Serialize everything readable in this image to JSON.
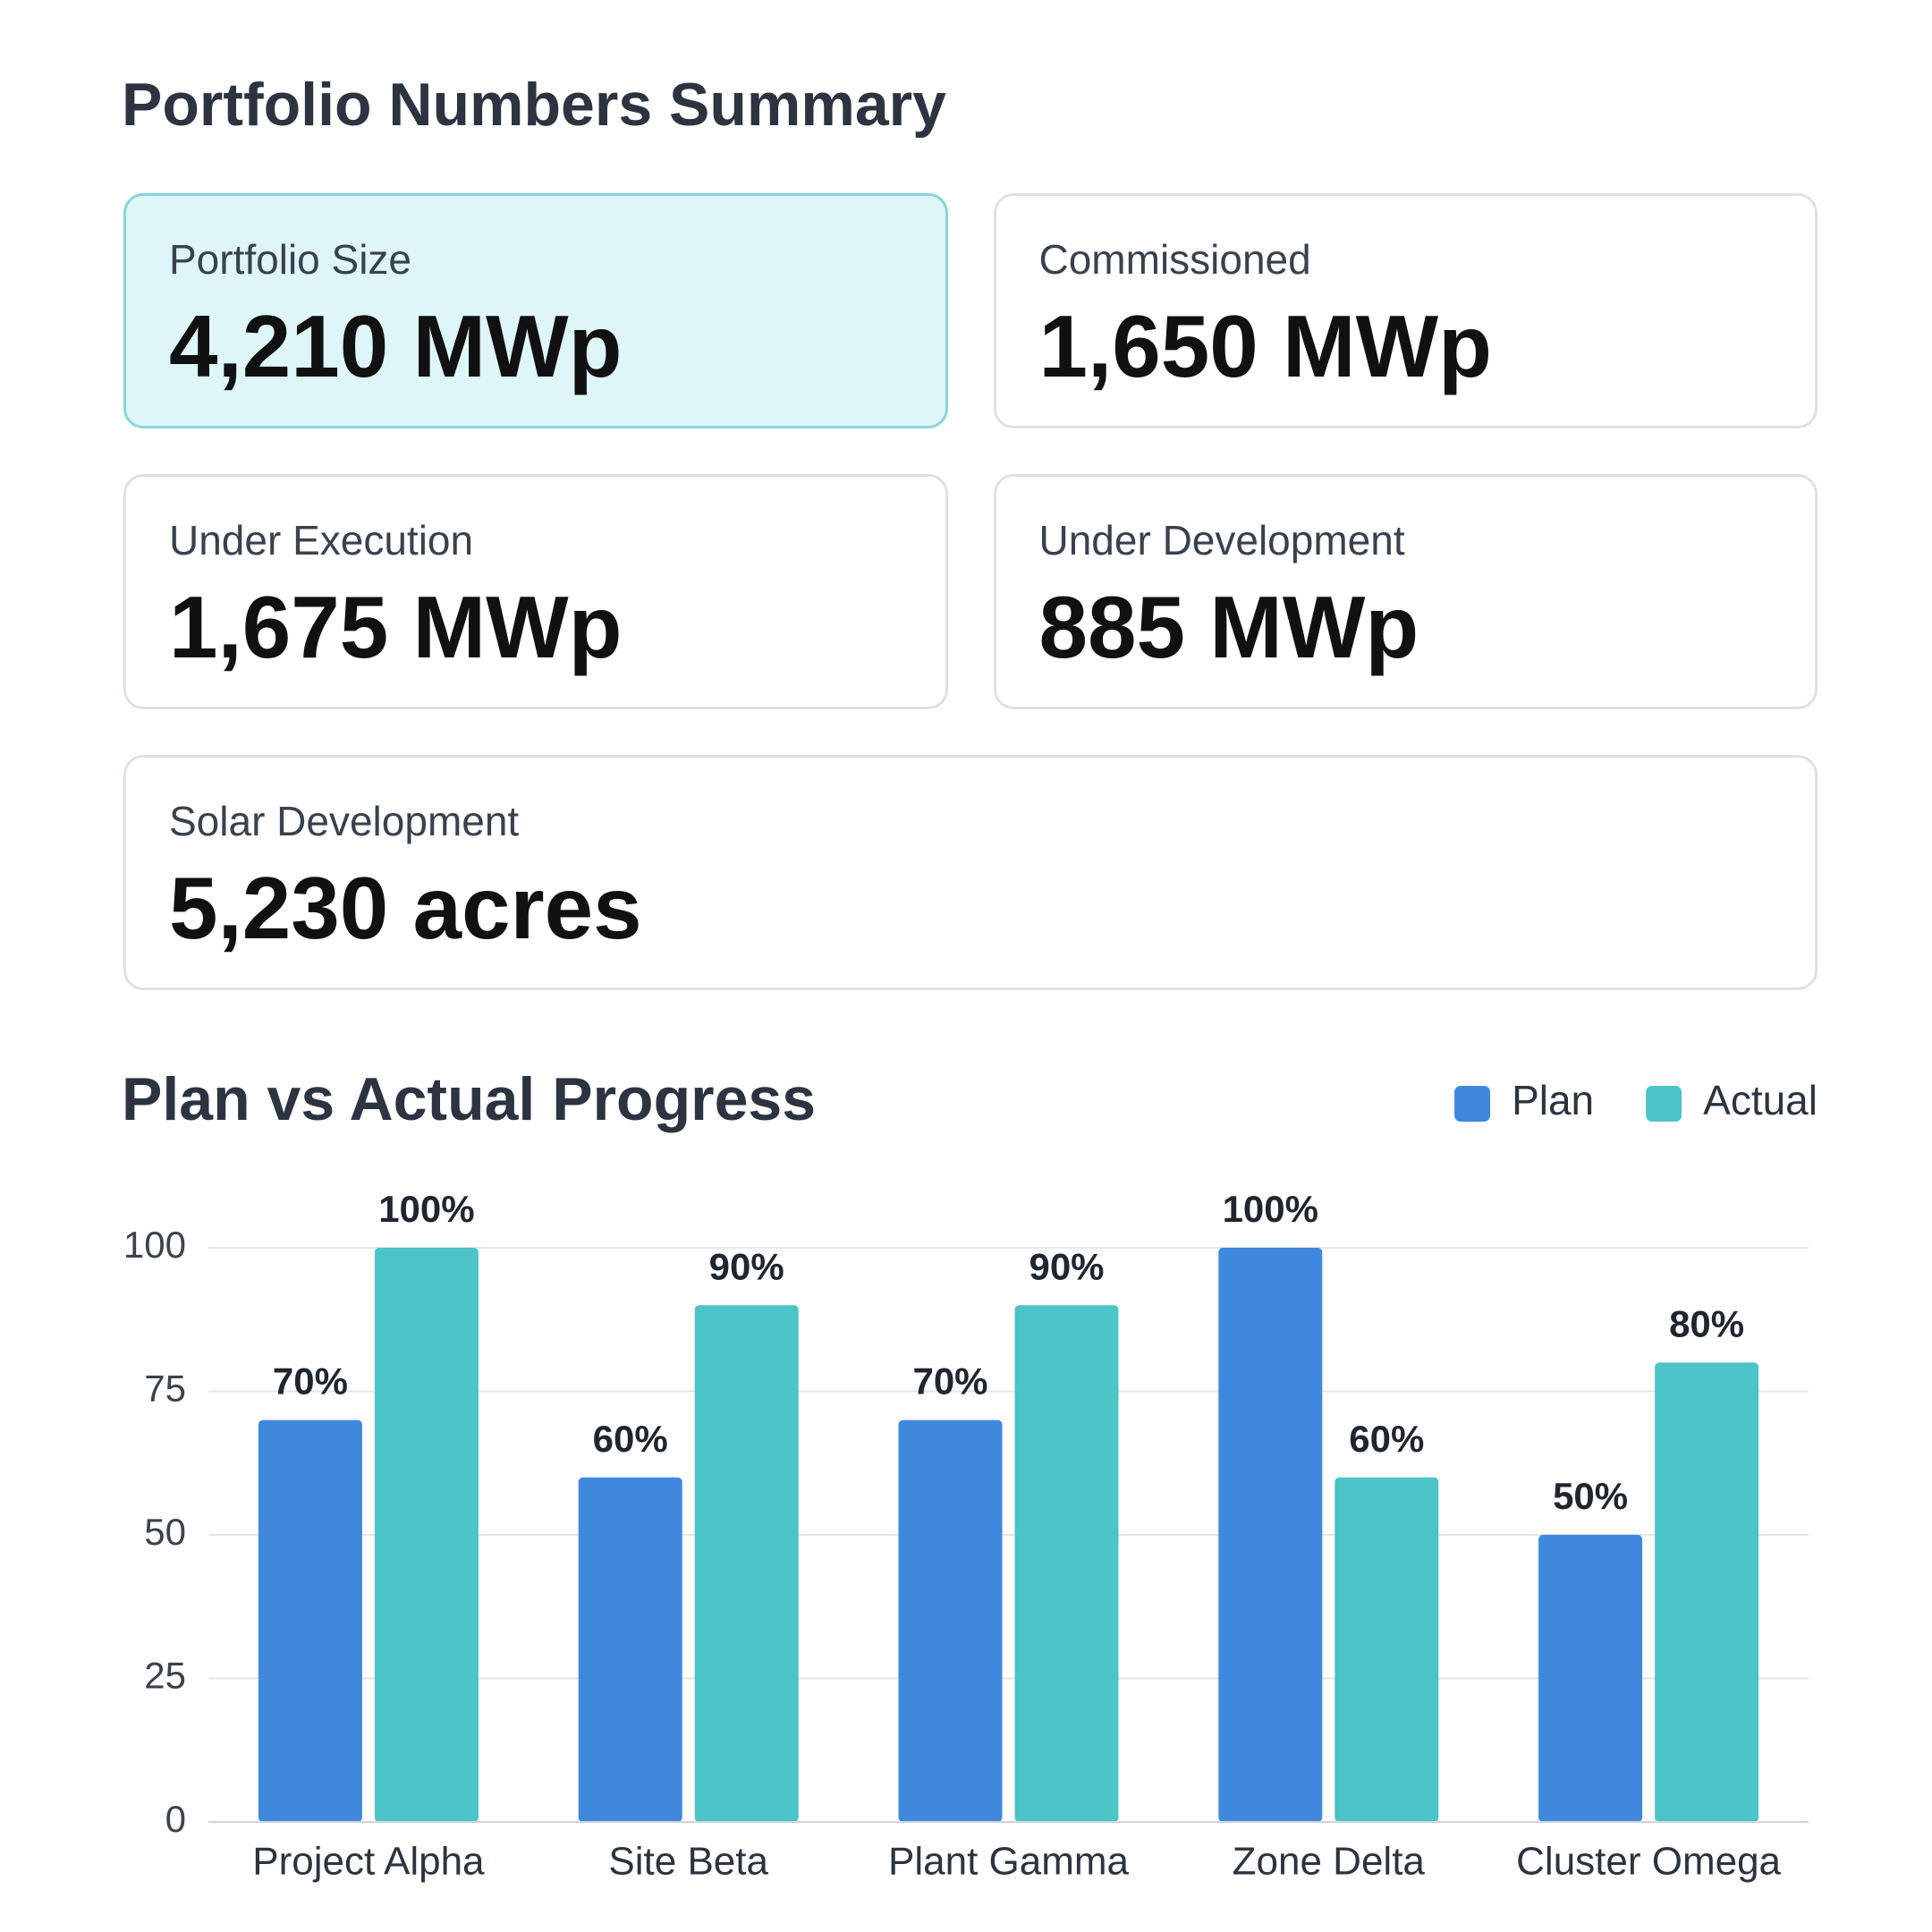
{
  "header": {
    "title": "Portfolio Numbers Summary"
  },
  "cards": [
    {
      "label": "Portfolio Size",
      "value": "4,210 MWp"
    },
    {
      "label": "Commissioned",
      "value": "1,650 MWp"
    },
    {
      "label": "Under Execution",
      "value": "1,675 MWp"
    },
    {
      "label": "Under Development",
      "value": "885 MWp"
    },
    {
      "label": "Solar Development",
      "value": "5,230 acres"
    }
  ],
  "chart_data": {
    "type": "bar",
    "title": "Plan vs Actual Progress",
    "categories": [
      "Project Alpha",
      "Site Beta",
      "Plant Gamma",
      "Zone Delta",
      "Cluster Omega"
    ],
    "series": [
      {
        "name": "Plan",
        "color": "#3f88de",
        "values": [
          70,
          60,
          70,
          100,
          50
        ],
        "value_labels": [
          "70%",
          "60%",
          "70%",
          "100%",
          "50%"
        ]
      },
      {
        "name": "Actual",
        "color": "#4cc4c8",
        "values": [
          100,
          90,
          90,
          60,
          80
        ],
        "value_labels": [
          "100%",
          "90%",
          "90%",
          "60%",
          "80%"
        ]
      }
    ],
    "ylim": [
      0,
      100
    ],
    "yticks": [
      0,
      25,
      50,
      75,
      100
    ],
    "grid": true,
    "legend": "top-right"
  }
}
